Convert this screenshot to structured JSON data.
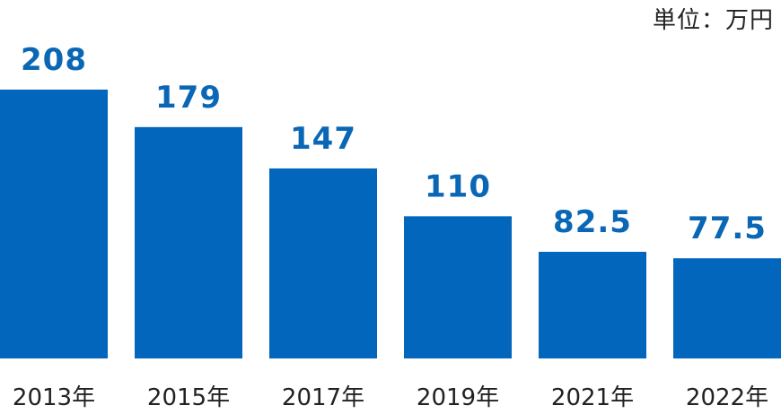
{
  "chart_data": {
    "type": "bar",
    "categories": [
      "2013年",
      "2015年",
      "2017年",
      "2019年",
      "2021年",
      "2022年"
    ],
    "values": [
      208,
      179,
      147,
      110,
      82.5,
      77.5
    ],
    "value_labels": [
      "208",
      "179",
      "147",
      "110",
      "82.5",
      "77.5"
    ],
    "unit": "単位：万円",
    "title": "",
    "xlabel": "",
    "ylabel": "",
    "ylim": [
      0,
      240
    ],
    "grid": false,
    "colors": {
      "bar": "#0266bc",
      "value_label": "#0a67b5",
      "tick_label": "#222222"
    }
  }
}
